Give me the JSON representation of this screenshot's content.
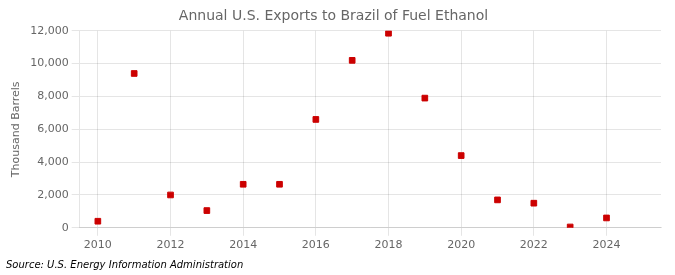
{
  "chart_data": {
    "type": "scatter",
    "title": "Annual U.S. Exports to Brazil of Fuel Ethanol",
    "ylabel": "Thousand Barrels",
    "source": "Source: U.S. Energy Information Administration",
    "x": [
      2010,
      2011,
      2012,
      2013,
      2014,
      2015,
      2016,
      2017,
      2018,
      2019,
      2020,
      2021,
      2022,
      2023,
      2024
    ],
    "values": [
      400,
      9400,
      2000,
      1050,
      2650,
      2650,
      6600,
      10200,
      11850,
      7900,
      4400,
      1700,
      1500,
      50,
      600
    ],
    "color": "#cc0000",
    "marker": "square",
    "xlim": [
      2009.5,
      2025.5
    ],
    "xticks": [
      2010,
      2012,
      2014,
      2016,
      2018,
      2020,
      2022,
      2024
    ],
    "ylim": [
      0,
      12000
    ],
    "yticks": [
      0,
      {
        "value": 2000,
        "label": "2,000"
      },
      {
        "value": 4000,
        "label": "4,000"
      },
      {
        "value": 6000,
        "label": "6,000"
      },
      {
        "value": 8000,
        "label": "8,000"
      },
      {
        "value": 10000,
        "label": "10,000"
      },
      {
        "value": 12000,
        "label": "12,000"
      }
    ],
    "grid": true
  }
}
